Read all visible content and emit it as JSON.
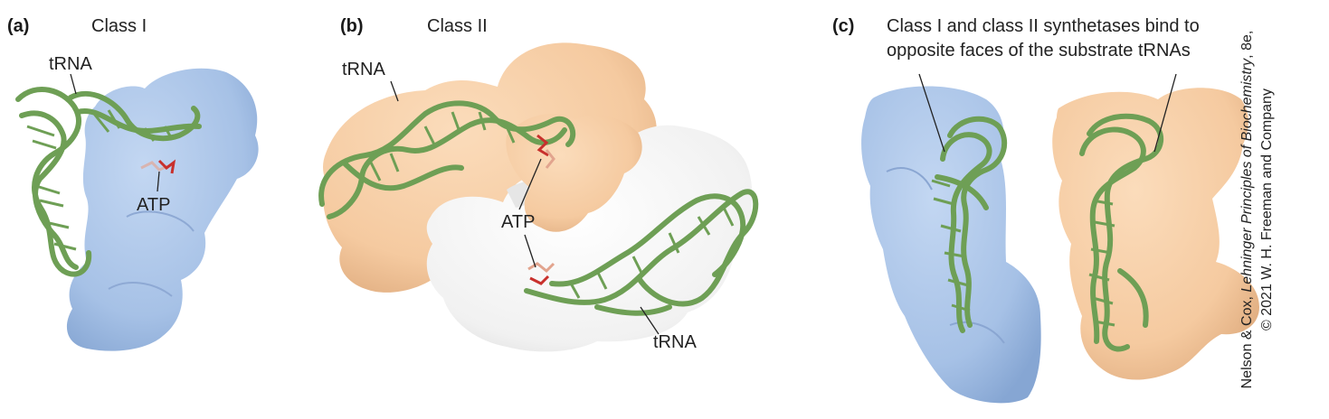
{
  "panels": {
    "a": {
      "letter": "(a)",
      "title": "Class I",
      "trna_label": "tRNA",
      "atp_label": "ATP"
    },
    "b": {
      "letter": "(b)",
      "title": "Class II",
      "trna_label_top": "tRNA",
      "trna_label_bottom": "tRNA",
      "atp_label": "ATP"
    },
    "c": {
      "letter": "(c)",
      "caption_line1": "Class I and class II synthetases bind to",
      "caption_line2": "opposite faces of the substrate tRNAs"
    }
  },
  "credit": {
    "authors": "Nelson & Cox, ",
    "book": "Lehninger Principles of Biochemistry",
    "edition": ", 8e,",
    "copyright": "© 2021 W. H. Freeman and Company"
  },
  "colors": {
    "class1_protein": "#a9c4e8",
    "class2_protein": "#f6cfa6",
    "second_subunit": "#f2f2f2",
    "trna": "#72a45a",
    "atp": "#d2403a"
  }
}
